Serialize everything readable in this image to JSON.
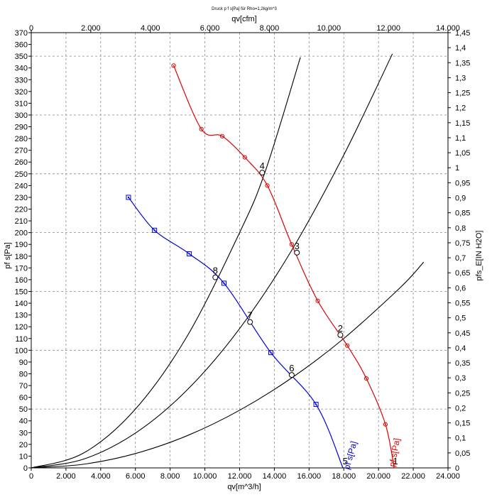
{
  "chart_data": {
    "type": "line",
    "title": "Druck p f s[Pa] für Rho=1,2kg/m^3",
    "xlabel": "qv[m^3/h]",
    "x2label": "qv[cfm]",
    "ylabel": "pf s[Pa]",
    "y2label": "pfs_E[IN H2O]",
    "xlim": [
      0,
      24000
    ],
    "x2lim": [
      0,
      14000
    ],
    "ylim": [
      0,
      370
    ],
    "y2lim": [
      0,
      1.45
    ],
    "x_ticks": [
      "0",
      "2.000",
      "4.000",
      "6.000",
      "8.000",
      "10.000",
      "12.000",
      "14.000",
      "16.000",
      "18.000",
      "20.000",
      "22.000",
      "24.000"
    ],
    "x2_ticks": [
      "0",
      "2.000",
      "4.000",
      "6.000",
      "8.000",
      "10.000",
      "12.000",
      "14.000"
    ],
    "y_ticks": [
      "0",
      "10",
      "20",
      "30",
      "40",
      "50",
      "60",
      "70",
      "80",
      "90",
      "100",
      "110",
      "120",
      "130",
      "140",
      "150",
      "160",
      "170",
      "180",
      "190",
      "200",
      "210",
      "220",
      "230",
      "240",
      "250",
      "260",
      "270",
      "280",
      "290",
      "300",
      "310",
      "320",
      "330",
      "340",
      "350",
      "360",
      "370"
    ],
    "y2_ticks": [
      "0",
      "0,05",
      "0,1",
      "0,15",
      "0,2",
      "0,25",
      "0,3",
      "0,35",
      "0,4",
      "0,45",
      "0,5",
      "0,55",
      "0,6",
      "0,65",
      "0,7",
      "0,75",
      "0,8",
      "0,85",
      "0,9",
      "0,95",
      "1",
      "1,05",
      "1,1",
      "1,15",
      "1,2",
      "1,25",
      "1,3",
      "1,35",
      "1,4",
      "1,45"
    ],
    "grid": true,
    "series": [
      {
        "name": "pf s[Pa]",
        "color": "#e00000",
        "marker": "circle",
        "points": [
          [
            8200,
            342
          ],
          [
            9800,
            288
          ],
          [
            11000,
            282
          ],
          [
            12300,
            264
          ],
          [
            13600,
            240
          ],
          [
            15000,
            190
          ],
          [
            16500,
            142
          ],
          [
            18200,
            104
          ],
          [
            19300,
            76
          ],
          [
            20400,
            37
          ],
          [
            20900,
            0
          ]
        ]
      },
      {
        "name": "pf s[Pa]",
        "color": "#0000e0",
        "marker": "square",
        "points": [
          [
            5600,
            230
          ],
          [
            7100,
            202
          ],
          [
            9100,
            182
          ],
          [
            11100,
            157
          ],
          [
            13800,
            98
          ],
          [
            16400,
            54
          ],
          [
            17950,
            0
          ]
        ]
      }
    ],
    "system_curves": [
      {
        "color": "#000000",
        "points": [
          [
            0,
            0
          ],
          [
            3000,
            12.5
          ],
          [
            6000,
            50
          ],
          [
            9000,
            112.5
          ],
          [
            12000,
            200
          ],
          [
            13500,
            253
          ],
          [
            15500,
            349
          ]
        ]
      },
      {
        "color": "#000000",
        "points": [
          [
            0,
            0
          ],
          [
            3000,
            7.4
          ],
          [
            6000,
            29.6
          ],
          [
            9000,
            66.6
          ],
          [
            12000,
            118.4
          ],
          [
            15000,
            185
          ],
          [
            18000,
            266
          ],
          [
            20800,
            352
          ]
        ]
      },
      {
        "color": "#000000",
        "points": [
          [
            0,
            0
          ],
          [
            3000,
            3.1
          ],
          [
            6000,
            12.2
          ],
          [
            9000,
            27.5
          ],
          [
            12000,
            49
          ],
          [
            15000,
            76.5
          ],
          [
            18000,
            110
          ],
          [
            21300,
            154
          ],
          [
            22600,
            175
          ]
        ]
      }
    ],
    "operating_points": [
      {
        "label": "1",
        "x": 20900,
        "y": 0
      },
      {
        "label": "2",
        "x": 17800,
        "y": 113
      },
      {
        "label": "3",
        "x": 15300,
        "y": 183
      },
      {
        "label": "4",
        "x": 13300,
        "y": 251
      },
      {
        "label": "5",
        "x": 18000,
        "y": 0
      },
      {
        "label": "6",
        "x": 15000,
        "y": 79
      },
      {
        "label": "7",
        "x": 12600,
        "y": 124
      },
      {
        "label": "8",
        "x": 10600,
        "y": 162
      }
    ]
  }
}
